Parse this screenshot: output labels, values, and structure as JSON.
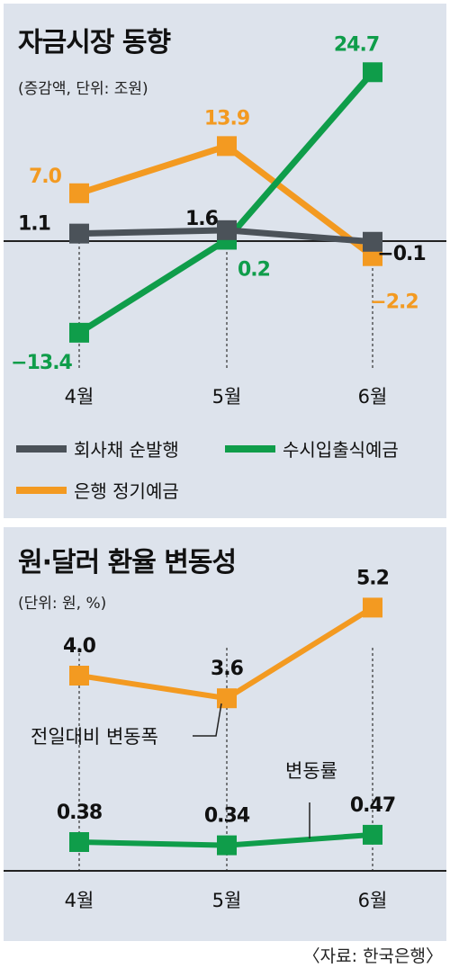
{
  "source": "〈자료: 한국은행〉",
  "colors": {
    "green": "#0f9d4a",
    "orange": "#f39a21",
    "gray": "#4b5259",
    "panel": "#dde3ec"
  },
  "chart_data": [
    {
      "type": "line",
      "title": "자금시장 동향",
      "subtitle": "(증감액, 단위: 조원)",
      "categories": [
        "4월",
        "5월",
        "6월"
      ],
      "ylim": [
        -16,
        28
      ],
      "baseline": 0,
      "legend_position": "bottom",
      "series": [
        {
          "name": "회사채 순발행",
          "color": "#4b5259",
          "values": [
            1.1,
            1.6,
            -0.1
          ],
          "labels": [
            "1.1",
            "1.6",
            "−0.1"
          ]
        },
        {
          "name": "수시입출식예금",
          "color": "#0f9d4a",
          "values": [
            -13.4,
            0.2,
            24.7
          ],
          "labels": [
            "−13.4",
            "0.2",
            "24.7"
          ]
        },
        {
          "name": "은행 정기예금",
          "color": "#f39a21",
          "values": [
            7.0,
            13.9,
            -2.2
          ],
          "labels": [
            "7.0",
            "13.9",
            "−2.2"
          ]
        }
      ]
    },
    {
      "type": "line",
      "title": "원·달러 환율 변동성",
      "subtitle": "(단위: 원, %)",
      "categories": [
        "4월",
        "5월",
        "6월"
      ],
      "series": [
        {
          "name": "전일대비 변동폭",
          "color": "#f39a21",
          "values": [
            4.0,
            3.6,
            5.2
          ],
          "labels": [
            "4.0",
            "3.6",
            "5.2"
          ]
        },
        {
          "name": "변동률",
          "color": "#0f9d4a",
          "values": [
            0.38,
            0.34,
            0.47
          ],
          "labels": [
            "0.38",
            "0.34",
            "0.47"
          ]
        }
      ]
    }
  ]
}
